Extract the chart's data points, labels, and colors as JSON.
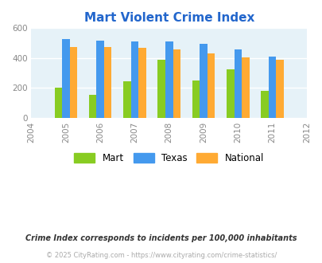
{
  "title": "Mart Violent Crime Index",
  "years": [
    2004,
    2005,
    2006,
    2007,
    2008,
    2009,
    2010,
    2011,
    2012
  ],
  "data_years": [
    2005,
    2006,
    2007,
    2008,
    2009,
    2010,
    2011
  ],
  "mart": [
    203,
    155,
    243,
    390,
    250,
    323,
    180
  ],
  "texas": [
    528,
    518,
    510,
    510,
    495,
    455,
    410
  ],
  "national": [
    473,
    475,
    466,
    458,
    429,
    404,
    387
  ],
  "mart_color": "#88cc22",
  "texas_color": "#4499ee",
  "national_color": "#ffaa33",
  "bg_color": "#e6f2f8",
  "ylim": [
    0,
    600
  ],
  "yticks": [
    0,
    200,
    400,
    600
  ],
  "tick_color": "#888888",
  "title_color": "#2266cc",
  "footnote1": "Crime Index corresponds to incidents per 100,000 inhabitants",
  "footnote2": "© 2025 CityRating.com - https://www.cityrating.com/crime-statistics/",
  "legend_labels": [
    "Mart",
    "Texas",
    "National"
  ],
  "bar_width": 0.22
}
